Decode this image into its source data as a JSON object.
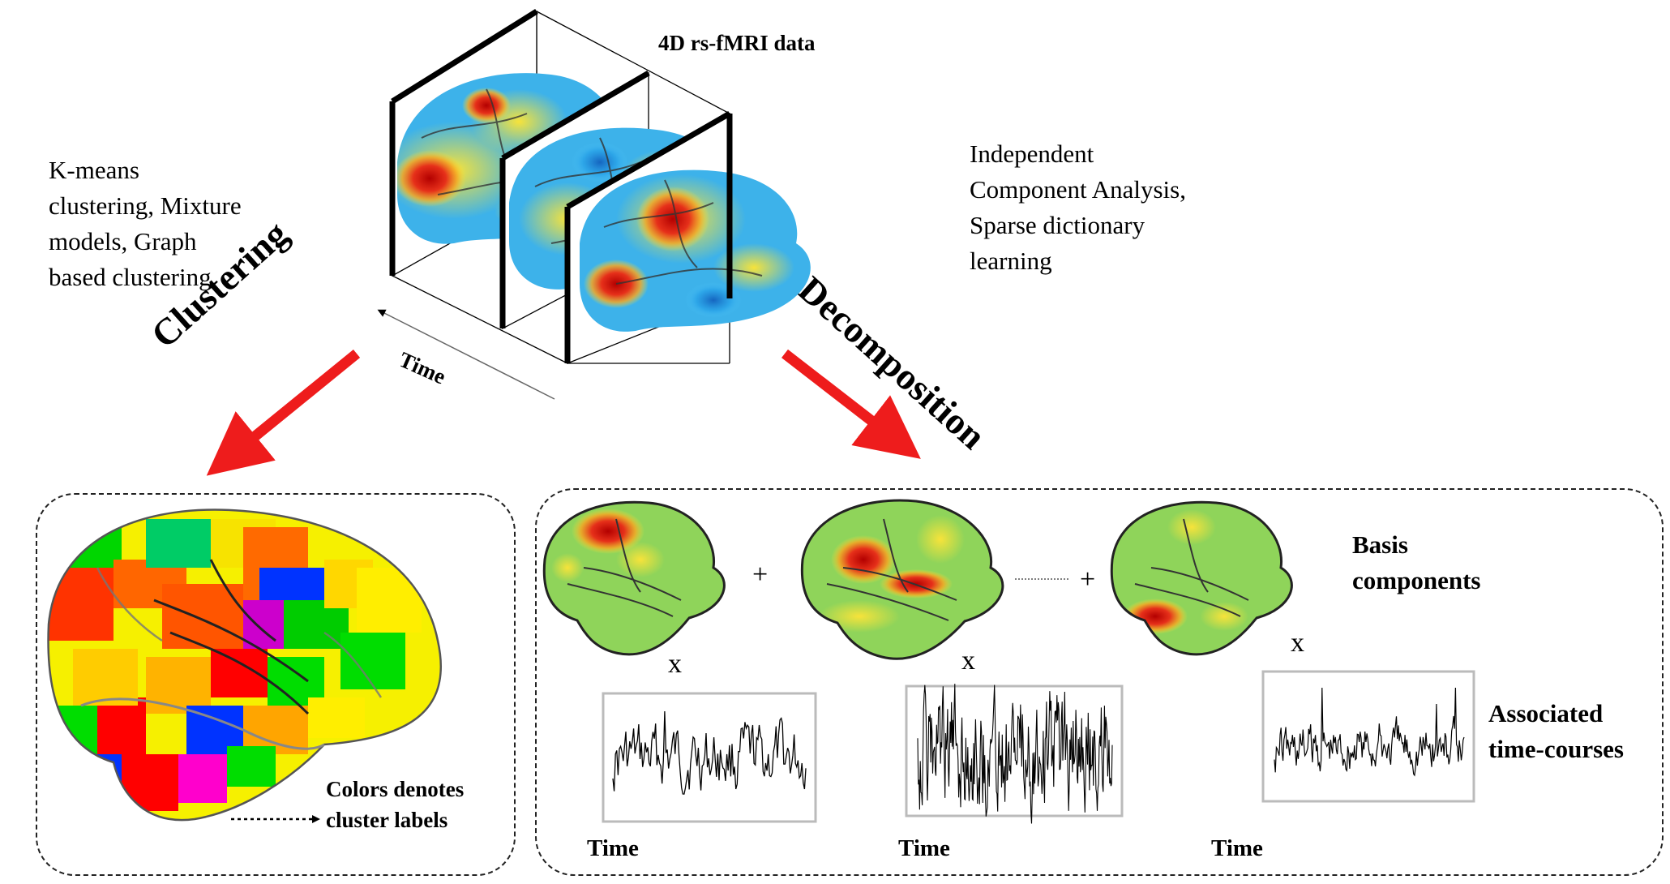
{
  "top": {
    "data_title": "4D rs-fMRI data",
    "time_axis_label": "Time"
  },
  "clustering": {
    "label": "Clustering",
    "methods": [
      "K-means",
      "clustering, Mixture",
      "models, Graph",
      "based clustering"
    ],
    "note_line1": "Colors denotes",
    "note_line2": "cluster labels"
  },
  "decomposition": {
    "label": "Decomposition",
    "methods": [
      "Independent",
      "Component Analysis,",
      "Sparse dictionary",
      "learning"
    ],
    "plus_symbol": "+",
    "times_symbol": "x",
    "basis_line1": "Basis",
    "basis_line2": "components",
    "timecourse_line1": "Associated",
    "timecourse_line2": "time-courses",
    "time_labels": [
      "Time",
      "Time",
      "Time"
    ]
  },
  "colors": {
    "arrow_red": "#ee1c1c",
    "panel_border": "#222222",
    "brain_green": "#8fd45a",
    "heat_red": "#d7191c",
    "heat_yellow": "#f7e33a",
    "heat_blue": "#1f8fe0"
  }
}
